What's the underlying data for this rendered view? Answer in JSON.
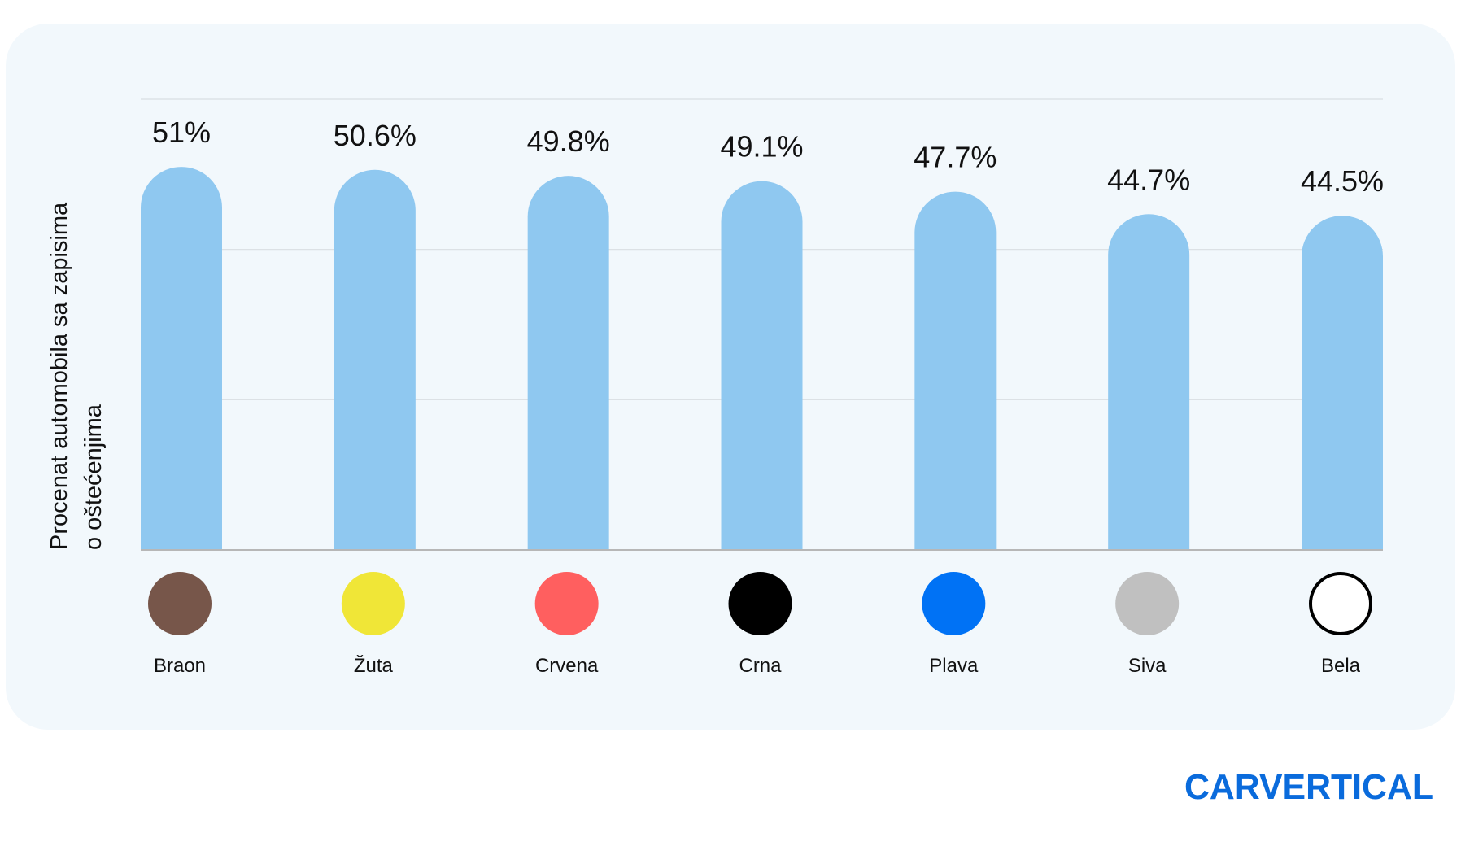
{
  "chart_data": {
    "type": "bar",
    "categories": [
      "Braon",
      "Žuta",
      "Crvena",
      "Crna",
      "Plava",
      "Siva",
      "Bela"
    ],
    "values": [
      51,
      50.6,
      49.8,
      49.1,
      47.7,
      44.7,
      44.5
    ],
    "value_labels": [
      "51%",
      "50.6%",
      "49.8%",
      "49.1%",
      "47.7%",
      "44.7%",
      "44.5%"
    ],
    "swatch_colors": [
      "#77564a",
      "#f0e637",
      "#ff5f5f",
      "#000000",
      "#0072f5",
      "#c0c0c0",
      "#ffffff"
    ],
    "ylabel_lines": [
      "Procenat automobila sa zapisima",
      "o oštećenjima"
    ],
    "ylim": [
      0,
      60
    ],
    "grid": true,
    "bar_color": "#8fc8f0"
  },
  "brand": {
    "logo_text": "CARVERTICAL",
    "color": "#0a6bdc"
  }
}
